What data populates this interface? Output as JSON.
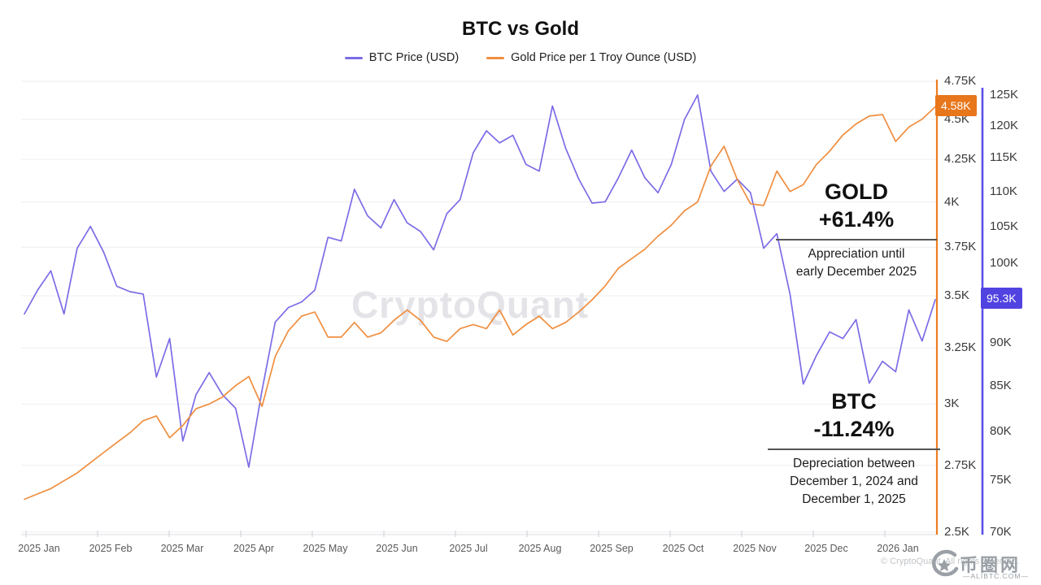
{
  "title": "BTC vs Gold",
  "legend": [
    {
      "label": "BTC Price (USD)",
      "color": "#7b6ce6"
    },
    {
      "label": "Gold Price per 1 Troy Ounce (USD)",
      "color": "#ef8e3f"
    }
  ],
  "watermark": "CryptoQuant",
  "annotations": {
    "gold": {
      "heading": "GOLD",
      "change": "+61.4%",
      "line1": "Appreciation until",
      "line2": "early December 2025"
    },
    "btc": {
      "heading": "BTC",
      "change": "-11.24%",
      "line1": "Depreciation between",
      "line2": "December 1, 2024 and",
      "line3": "December 1, 2025"
    }
  },
  "badges": {
    "gold": {
      "text": "4.58K",
      "color": "#e8761b",
      "value": 4.58
    },
    "btc": {
      "text": "95.3K",
      "color": "#5143e0",
      "value": 95.3
    }
  },
  "footer": {
    "copyright": "© CryptoQuant. All rights reserved.",
    "logo_text": "币圈网",
    "logo_sub": "—ALIBTC.COM—"
  },
  "chart_data": {
    "type": "line",
    "title": "BTC vs Gold",
    "x_labels": [
      "2025 Jan",
      "2025 Feb",
      "2025 Mar",
      "2025 Apr",
      "2025 May",
      "2025 Jun",
      "2025 Jul",
      "2025 Aug",
      "2025 Sep",
      "2025 Oct",
      "2025 Nov",
      "2025 Dec",
      "2026 Jan"
    ],
    "x_range_note": "late Dec 2024 to mid Jan 2026, ~5.6-day sampling",
    "grid": true,
    "legend_position": "top",
    "series": [
      {
        "id": "btc",
        "name": "BTC Price (USD)",
        "color": "#7b6ce6",
        "axis": "outer-right",
        "unit": "thousand USD",
        "values": [
          93.5,
          96.5,
          99.0,
          93.5,
          102.0,
          105.0,
          101.5,
          97.0,
          96.3,
          96.0,
          86.0,
          90.5,
          79.0,
          84.0,
          86.5,
          84.0,
          82.5,
          76.3,
          84.5,
          92.5,
          94.3,
          95.0,
          96.5,
          103.5,
          103.0,
          110.3,
          106.5,
          104.8,
          108.8,
          105.5,
          104.3,
          101.8,
          106.8,
          108.8,
          115.8,
          119.2,
          117.3,
          118.5,
          114.0,
          113.0,
          123.2,
          116.5,
          111.8,
          108.3,
          108.5,
          112.0,
          116.2,
          112.0,
          109.8,
          114.0,
          121.0,
          125.0,
          113.0,
          110.0,
          111.8,
          109.8,
          102.0,
          104.0,
          96.0,
          85.2,
          88.5,
          91.3,
          90.5,
          92.8,
          85.3,
          87.8,
          86.6,
          94.0,
          90.2,
          95.3
        ]
      },
      {
        "id": "gold",
        "name": "Gold Price per 1 Troy Ounce (USD)",
        "color": "#ef8e3f",
        "axis": "inner-right",
        "unit": "thousand USD per troy ounce",
        "values": [
          2.62,
          2.64,
          2.66,
          2.69,
          2.72,
          2.76,
          2.8,
          2.84,
          2.88,
          2.93,
          2.95,
          2.86,
          2.91,
          2.98,
          3.0,
          3.03,
          3.08,
          3.12,
          2.99,
          3.21,
          3.33,
          3.4,
          3.42,
          3.3,
          3.3,
          3.37,
          3.3,
          3.32,
          3.38,
          3.43,
          3.38,
          3.3,
          3.28,
          3.34,
          3.36,
          3.34,
          3.43,
          3.31,
          3.36,
          3.4,
          3.34,
          3.37,
          3.42,
          3.48,
          3.55,
          3.64,
          3.69,
          3.74,
          3.81,
          3.87,
          3.95,
          4.0,
          4.21,
          4.33,
          4.13,
          3.99,
          3.98,
          4.18,
          4.06,
          4.1,
          4.22,
          4.3,
          4.4,
          4.47,
          4.52,
          4.53,
          4.36,
          4.45,
          4.5,
          4.58
        ]
      }
    ],
    "btc_axis": {
      "scale": "log",
      "range": [
        70,
        127
      ],
      "tick_values": [
        70,
        75,
        80,
        85,
        90,
        100,
        105,
        110,
        115,
        120,
        125
      ],
      "tick_labels": [
        "70K",
        "75K",
        "80K",
        "85K",
        "90K",
        "100K",
        "105K",
        "110K",
        "115K",
        "120K",
        "125K"
      ],
      "last_value_label": "95.3K"
    },
    "gold_axis": {
      "scale": "log",
      "range": [
        2.5,
        4.75
      ],
      "tick_values": [
        2.5,
        2.75,
        3.0,
        3.25,
        3.5,
        3.75,
        4.0,
        4.25,
        4.5,
        4.75
      ],
      "tick_labels": [
        "2.5K",
        "2.75K",
        "3K",
        "3.25K",
        "3.5K",
        "3.75K",
        "4K",
        "4.25K",
        "4.5K",
        "4.75K"
      ],
      "last_value_label": "4.58K"
    }
  }
}
